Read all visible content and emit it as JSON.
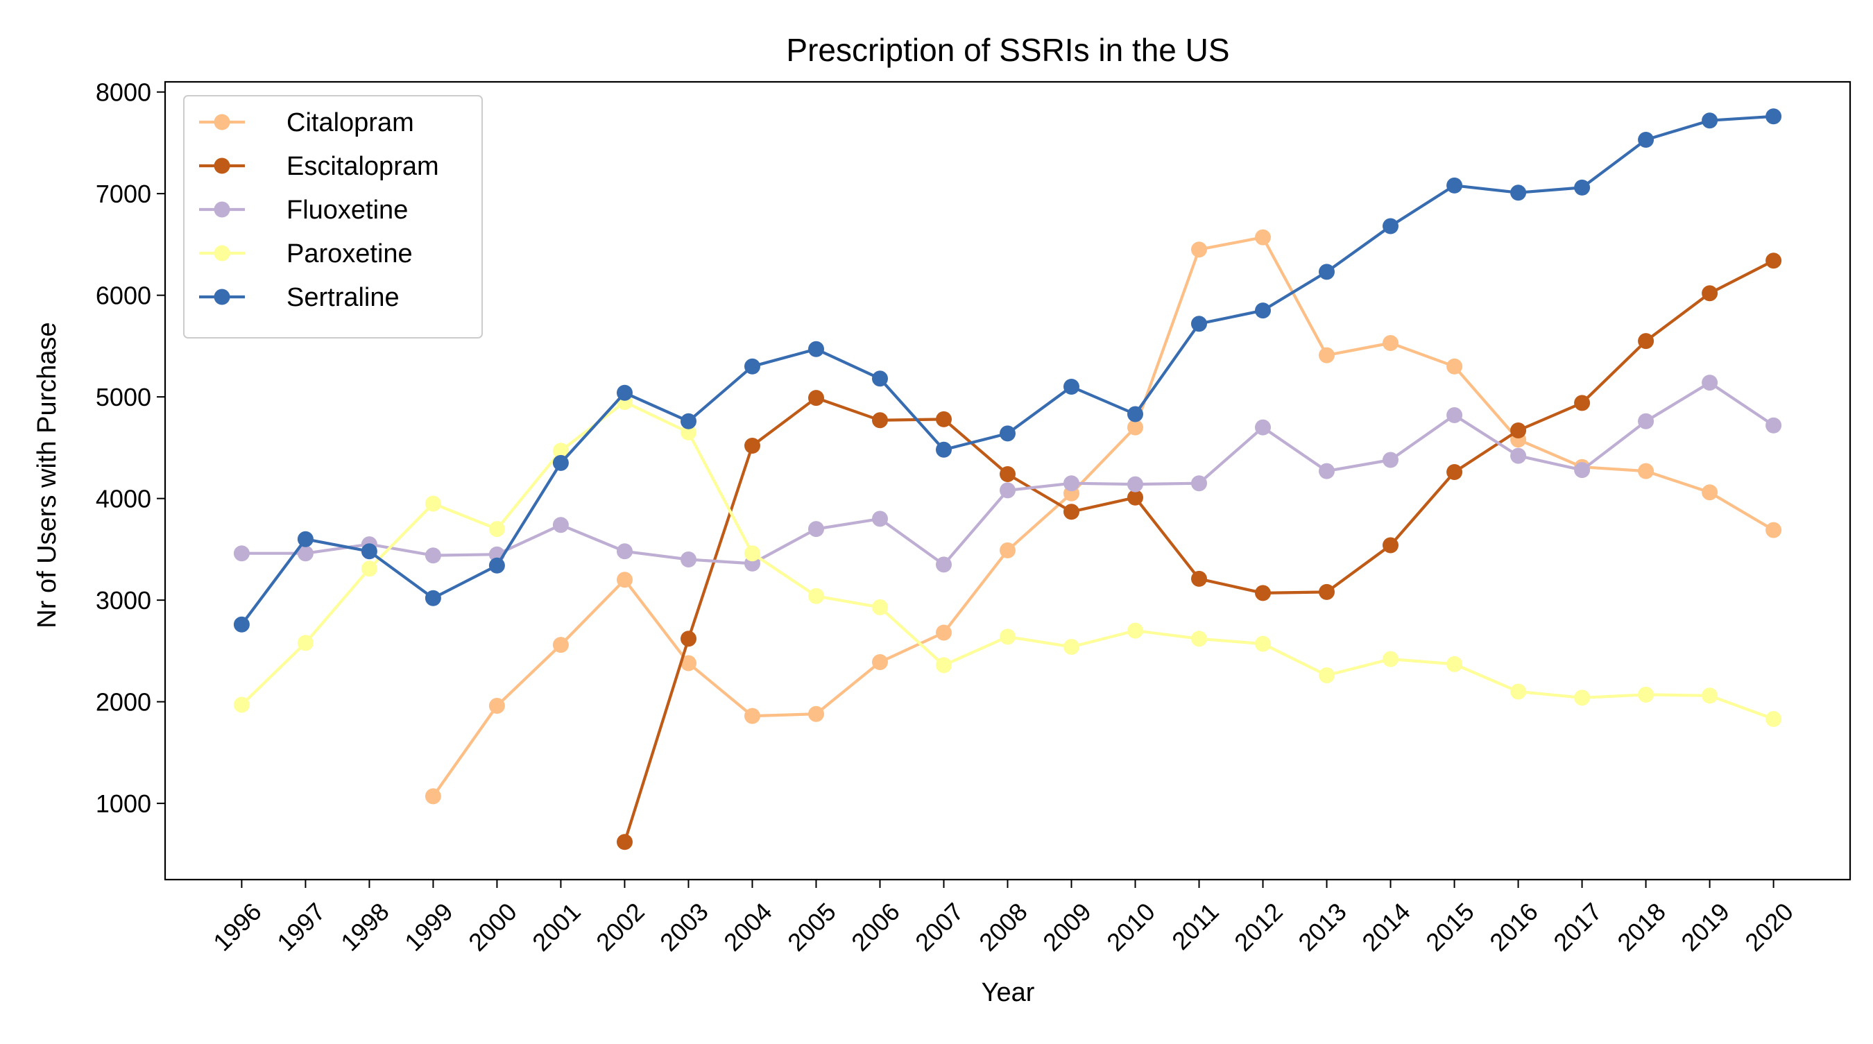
{
  "chart_data": {
    "type": "line",
    "title": "Prescription of SSRIs in the US",
    "xlabel": "Year",
    "ylabel": "Nr of Users with Purchase",
    "x": [
      1996,
      1997,
      1998,
      1999,
      2000,
      2001,
      2002,
      2003,
      2004,
      2005,
      2006,
      2007,
      2008,
      2009,
      2010,
      2011,
      2012,
      2013,
      2014,
      2015,
      2016,
      2017,
      2018,
      2019,
      2020
    ],
    "x_tick_labels": [
      "1996",
      "1997",
      "1998",
      "1999",
      "2000",
      "2001",
      "2002",
      "2003",
      "2004",
      "2005",
      "2006",
      "2007",
      "2008",
      "2009",
      "2010",
      "2011",
      "2012",
      "2013",
      "2014",
      "2015",
      "2016",
      "2017",
      "2018",
      "2019",
      "2020"
    ],
    "yticks": [
      1000,
      2000,
      3000,
      4000,
      5000,
      6000,
      7000,
      8000
    ],
    "y_tick_labels": [
      "1000",
      "2000",
      "3000",
      "4000",
      "5000",
      "6000",
      "7000",
      "8000"
    ],
    "ylim": [
      250,
      8100
    ],
    "grid": false,
    "legend_position": "top-left",
    "series": [
      {
        "name": "Citalopram",
        "color": "#fdbf86",
        "values": [
          null,
          null,
          null,
          1070,
          1960,
          2560,
          3200,
          2380,
          1860,
          1880,
          2390,
          2680,
          3490,
          4050,
          4700,
          6450,
          6570,
          5410,
          5530,
          5300,
          4580,
          4310,
          4270,
          4060,
          3690
        ]
      },
      {
        "name": "Escitalopram",
        "color": "#bf5b17",
        "values": [
          null,
          null,
          null,
          null,
          null,
          null,
          620,
          2620,
          4520,
          4990,
          4770,
          4780,
          4240,
          3870,
          4010,
          3210,
          3070,
          3080,
          3540,
          4260,
          4670,
          4940,
          5550,
          6020,
          6340
        ]
      },
      {
        "name": "Fluoxetine",
        "color": "#beaed4",
        "values": [
          3460,
          3460,
          3550,
          3440,
          3450,
          3740,
          3480,
          3400,
          3360,
          3700,
          3800,
          3350,
          4080,
          4150,
          4140,
          4150,
          4700,
          4270,
          4380,
          4820,
          4420,
          4280,
          4760,
          5140,
          4720
        ]
      },
      {
        "name": "Paroxetine",
        "color": "#ffff99",
        "values": [
          1970,
          2580,
          3310,
          3950,
          3700,
          4470,
          4950,
          4650,
          3460,
          3040,
          2930,
          2360,
          2640,
          2540,
          2700,
          2620,
          2570,
          2260,
          2420,
          2370,
          2100,
          2040,
          2070,
          2060,
          1830
        ]
      },
      {
        "name": "Sertraline",
        "color": "#386cb0",
        "values": [
          2760,
          3600,
          3480,
          3020,
          3340,
          4350,
          5040,
          4760,
          5300,
          5470,
          5180,
          4480,
          4640,
          5100,
          4830,
          5720,
          5850,
          6230,
          6680,
          7080,
          7010,
          7060,
          7530,
          7720,
          7760
        ]
      }
    ]
  }
}
